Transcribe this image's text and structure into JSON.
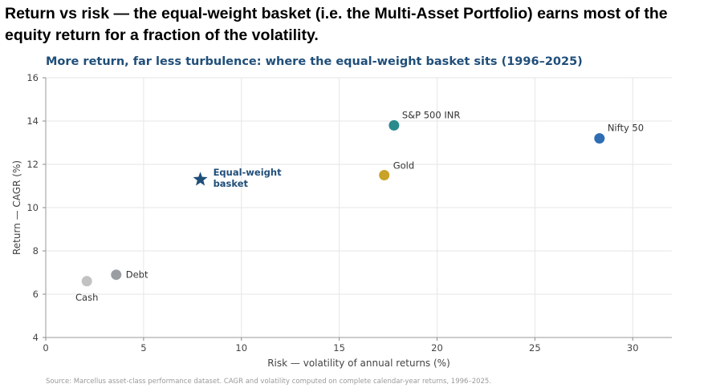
{
  "heading": "Return vs risk — the equal-weight basket (i.e. the Multi-Asset Portfolio) earns most of the equity return for a fraction of the volatility.",
  "source": "Source: Marcellus asset-class performance dataset. CAGR and volatility computed on complete calendar-year returns, 1996–2025.",
  "chart_data": {
    "type": "scatter",
    "title": "More return, far less turbulence: where the equal-weight basket sits (1996–2025)",
    "xlabel": "Risk — volatility of annual returns (%)",
    "ylabel": "Return — CAGR (%)",
    "xlim": [
      0,
      32
    ],
    "ylim": [
      4,
      16
    ],
    "xticks": [
      0,
      5,
      10,
      15,
      20,
      25,
      30
    ],
    "yticks": [
      4,
      6,
      8,
      10,
      12,
      14,
      16
    ],
    "grid": true,
    "points": [
      {
        "label": "Cash",
        "x": 2.1,
        "y": 6.6,
        "color": "#c2c2c2",
        "marker": "circle"
      },
      {
        "label": "Debt",
        "x": 3.6,
        "y": 6.9,
        "color": "#9a9ea3",
        "marker": "circle"
      },
      {
        "label": "Equal-weight basket",
        "x": 7.9,
        "y": 11.3,
        "color": "#1f4e79",
        "marker": "star"
      },
      {
        "label": "Gold",
        "x": 17.3,
        "y": 11.5,
        "color": "#c9a227",
        "marker": "circle"
      },
      {
        "label": "S&P 500 INR",
        "x": 17.8,
        "y": 13.8,
        "color": "#2a8a8c",
        "marker": "circle"
      },
      {
        "label": "Nifty 50",
        "x": 28.3,
        "y": 13.2,
        "color": "#2e6db4",
        "marker": "circle"
      }
    ]
  }
}
